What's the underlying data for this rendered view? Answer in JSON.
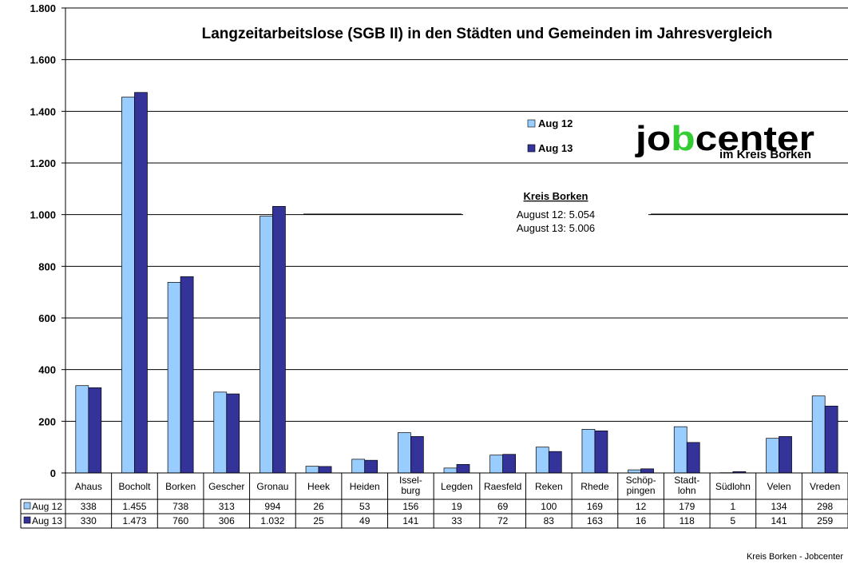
{
  "chart_data": {
    "type": "bar",
    "title": "Langzeitarbeitslose (SGB II) in den Städten und Gemeinden im Jahresvergleich",
    "ylim": [
      0,
      1800
    ],
    "yticks": [
      0,
      200,
      400,
      600,
      800,
      1000,
      1200,
      1400,
      1600,
      1800
    ],
    "ytick_labels": [
      "0",
      "200",
      "400",
      "600",
      "800",
      "1.000",
      "1.200",
      "1.400",
      "1.600",
      "1.800"
    ],
    "grid": true,
    "legend_position": "top-right",
    "categories": [
      "Ahaus",
      "Bocholt",
      "Borken",
      "Gescher",
      "Gronau",
      "Heek",
      "Heiden",
      "Issel-burg",
      "Legden",
      "Raesfeld",
      "Reken",
      "Rhede",
      "Schöp-pingen",
      "Stadt-lohn",
      "Südlohn",
      "Velen",
      "Vreden"
    ],
    "category_lines": [
      [
        "Ahaus"
      ],
      [
        "Bocholt"
      ],
      [
        "Borken"
      ],
      [
        "Gescher"
      ],
      [
        "Gronau"
      ],
      [
        "Heek"
      ],
      [
        "Heiden"
      ],
      [
        "Issel-",
        "burg"
      ],
      [
        "Legden"
      ],
      [
        "Raesfeld"
      ],
      [
        "Reken"
      ],
      [
        "Rhede"
      ],
      [
        "Schöp-",
        "pingen"
      ],
      [
        "Stadt-",
        "lohn"
      ],
      [
        "Südlohn"
      ],
      [
        "Velen"
      ],
      [
        "Vreden"
      ]
    ],
    "series": [
      {
        "name": "Aug 12",
        "color": "#99ccff",
        "values": [
          338,
          1455,
          738,
          313,
          994,
          26,
          53,
          156,
          19,
          69,
          100,
          169,
          12,
          179,
          1,
          134,
          298
        ],
        "labels": [
          "338",
          "1.455",
          "738",
          "313",
          "994",
          "26",
          "53",
          "156",
          "19",
          "69",
          "100",
          "169",
          "12",
          "179",
          "1",
          "134",
          "298"
        ]
      },
      {
        "name": "Aug 13",
        "color": "#333399",
        "values": [
          330,
          1473,
          760,
          306,
          1032,
          25,
          49,
          141,
          33,
          72,
          83,
          163,
          16,
          118,
          5,
          141,
          259
        ],
        "labels": [
          "330",
          "1.473",
          "760",
          "306",
          "1.032",
          "25",
          "49",
          "141",
          "33",
          "72",
          "83",
          "163",
          "16",
          "118",
          "5",
          "141",
          "259"
        ]
      }
    ],
    "annotation": {
      "title": "Kreis Borken",
      "lines": [
        "August 12: 5.054",
        "August 13: 5.006"
      ]
    }
  },
  "logo": {
    "main": "jobcenter",
    "sub": "im Kreis Borken",
    "accent_color": "#33cc33"
  },
  "footer": "Kreis Borken - Jobcenter"
}
